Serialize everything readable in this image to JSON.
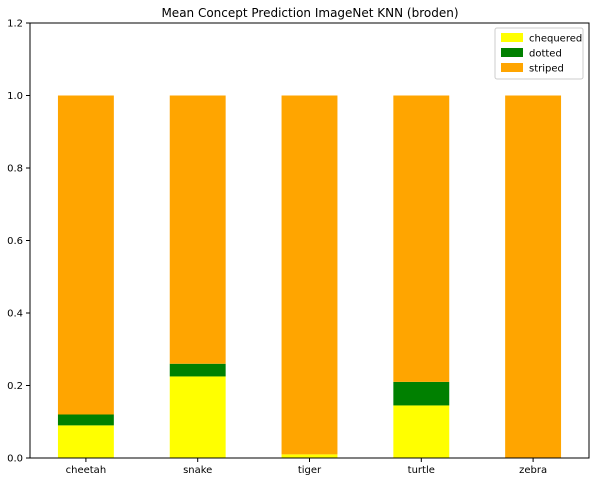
{
  "chart_data": {
    "type": "bar",
    "stacked": true,
    "title": "Mean Concept Prediction ImageNet KNN (broden)",
    "xlabel": "",
    "ylabel": "",
    "categories": [
      "cheetah",
      "snake",
      "tiger",
      "turtle",
      "zebra"
    ],
    "series": [
      {
        "name": "chequered",
        "color": "#ffff00",
        "values": [
          0.09,
          0.225,
          0.01,
          0.145,
          0.0
        ]
      },
      {
        "name": "dotted",
        "color": "#008000",
        "values": [
          0.03,
          0.035,
          0.0,
          0.065,
          0.0
        ]
      },
      {
        "name": "striped",
        "color": "#ffa500",
        "values": [
          0.88,
          0.74,
          0.99,
          0.79,
          1.0
        ]
      }
    ],
    "ylim": [
      0,
      1.2
    ],
    "yticks": [
      "0.0",
      "0.2",
      "0.4",
      "0.6",
      "0.8",
      "1.0",
      "1.2"
    ],
    "grid": false,
    "legend_position": "top-right"
  }
}
